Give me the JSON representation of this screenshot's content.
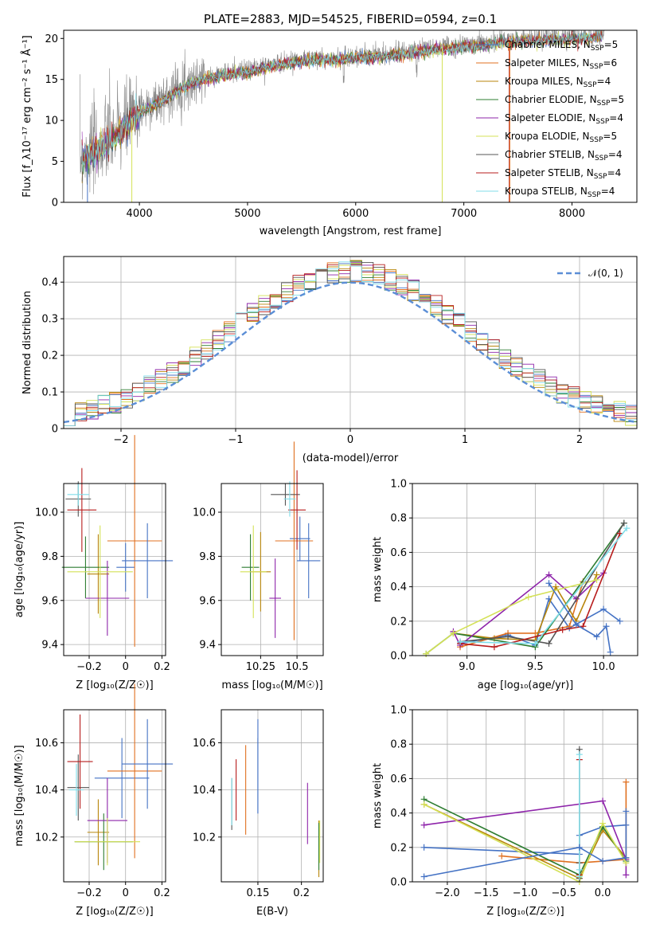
{
  "title": "PLATE=2883, MJD=54525, FIBERID=0594, z=0.1",
  "colors": [
    "#4472c4",
    "#e07020",
    "#b8860b",
    "#2e7d32",
    "#8e24aa",
    "#d4e157",
    "#555555",
    "#b71c1c",
    "#80deea"
  ],
  "models": [
    {
      "name": "Chabrier MILES",
      "nssp": "5"
    },
    {
      "name": "Salpeter MILES",
      "nssp": "6"
    },
    {
      "name": "Kroupa MILES",
      "nssp": "4"
    },
    {
      "name": "Chabrier ELODIE",
      "nssp": "5"
    },
    {
      "name": "Salpeter ELODIE",
      "nssp": "4"
    },
    {
      "name": "Kroupa ELODIE",
      "nssp": "5"
    },
    {
      "name": "Chabrier STELIB",
      "nssp": "4"
    },
    {
      "name": "Salpeter STELIB",
      "nssp": "4"
    },
    {
      "name": "Kroupa STELIB",
      "nssp": "4"
    }
  ],
  "chart_data": [
    {
      "id": "spectrum",
      "type": "line",
      "xlabel": "wavelength [Angstrom, rest frame]",
      "ylabel": "Flux [f_λ10⁻¹⁷ erg cm⁻² s⁻¹ Å⁻¹]",
      "xlim": [
        3300,
        8600
      ],
      "ylim": [
        0,
        21
      ],
      "xticks": [
        4000,
        5000,
        6000,
        7000,
        8000
      ],
      "yticks": [
        0,
        5,
        10,
        15,
        20
      ],
      "data_color": "#888888",
      "continuum": [
        [
          3450,
          5.5
        ],
        [
          3600,
          6.5
        ],
        [
          3800,
          8.5
        ],
        [
          4000,
          11.2
        ],
        [
          4200,
          12.5
        ],
        [
          4400,
          14.3
        ],
        [
          4600,
          15.3
        ],
        [
          4800,
          15.8
        ],
        [
          5000,
          16.2
        ],
        [
          5200,
          16.8
        ],
        [
          5400,
          17.3
        ],
        [
          5600,
          17.6
        ],
        [
          5800,
          17.6
        ],
        [
          6000,
          17.9
        ],
        [
          6200,
          18.0
        ],
        [
          6400,
          18.3
        ],
        [
          6600,
          18.6
        ],
        [
          6800,
          19.0
        ],
        [
          7000,
          19.2
        ],
        [
          7200,
          19.5
        ],
        [
          7400,
          19.8
        ],
        [
          7600,
          20.0
        ],
        [
          7800,
          20.1
        ],
        [
          8000,
          20.2
        ],
        [
          8300,
          20.5
        ]
      ],
      "legend_position": "upper-right"
    },
    {
      "id": "residuals",
      "type": "histogram",
      "xlabel": "(data-model)/error",
      "ylabel": "Normed distribution",
      "xlim": [
        -2.5,
        2.5
      ],
      "ylim": [
        0,
        0.47
      ],
      "xticks": [
        -2,
        -1,
        0,
        1,
        2
      ],
      "yticks": [
        0.0,
        0.1,
        0.2,
        0.3,
        0.4
      ],
      "grid": true,
      "reference": {
        "label": "𝒩(0, 1)",
        "color": "#5b8ed6",
        "mean": 0,
        "sigma": 1
      },
      "legend_position": "upper-right"
    },
    {
      "id": "age-vs-Z",
      "type": "errorbar",
      "xlabel": "Z [log₁₀(Z/Z☉)]",
      "ylabel": "age  [log₁₀(age/yr)]",
      "xlim": [
        -0.34,
        0.22
      ],
      "ylim": [
        9.35,
        10.13
      ],
      "xticks": [
        -0.2,
        0.0,
        0.2
      ],
      "yticks": [
        9.4,
        9.6,
        9.8,
        10.0
      ],
      "grid": true,
      "points": [
        {
          "x": -0.0,
          "y": 9.75,
          "xerr": 0.05,
          "yerr": 0.11
        },
        {
          "x": 0.05,
          "y": 9.87,
          "xerr": 0.15,
          "yerr": 0.48
        },
        {
          "x": -0.15,
          "y": 9.72,
          "xerr": 0.06,
          "yerr": 0.18
        },
        {
          "x": -0.22,
          "y": 9.75,
          "xerr": 0.13,
          "yerr": 0.14
        },
        {
          "x": -0.1,
          "y": 9.61,
          "xerr": 0.12,
          "yerr": 0.17
        },
        {
          "x": -0.14,
          "y": 9.73,
          "xerr": 0.18,
          "yerr": 0.21
        },
        {
          "x": -0.26,
          "y": 10.06,
          "xerr": 0.07,
          "yerr": 0.08
        },
        {
          "x": -0.24,
          "y": 10.01,
          "xerr": 0.08,
          "yerr": 0.19
        },
        {
          "x": -0.26,
          "y": 10.08,
          "xerr": 0.06,
          "yerr": 0.05
        },
        {
          "x": 0.12,
          "y": 9.78,
          "xerr": 0.14,
          "yerr": 0.17
        }
      ]
    },
    {
      "id": "age-vs-mass",
      "type": "errorbar",
      "xlabel": "mass [log₁₀(M/M☉)]",
      "ylabel": "",
      "xlim": [
        9.98,
        10.68
      ],
      "ylim": [
        9.35,
        10.13
      ],
      "xticks": [
        10.25,
        10.5
      ],
      "yticks": [
        9.4,
        9.6,
        9.8,
        10.0
      ],
      "grid": true,
      "points": [
        {
          "x": 10.52,
          "y": 9.88,
          "xerr": 0.07,
          "yerr": 0.1
        },
        {
          "x": 10.48,
          "y": 9.87,
          "xerr": 0.13,
          "yerr": 0.45
        },
        {
          "x": 10.25,
          "y": 9.73,
          "xerr": 0.07,
          "yerr": 0.18
        },
        {
          "x": 10.18,
          "y": 9.75,
          "xerr": 0.06,
          "yerr": 0.15
        },
        {
          "x": 10.35,
          "y": 9.61,
          "xerr": 0.04,
          "yerr": 0.18
        },
        {
          "x": 10.2,
          "y": 9.73,
          "xerr": 0.09,
          "yerr": 0.21
        },
        {
          "x": 10.42,
          "y": 10.08,
          "xerr": 0.1,
          "yerr": 0.05
        },
        {
          "x": 10.5,
          "y": 10.01,
          "xerr": 0.06,
          "yerr": 0.18
        },
        {
          "x": 10.45,
          "y": 10.06,
          "xerr": 0.04,
          "yerr": 0.08
        },
        {
          "x": 10.58,
          "y": 9.78,
          "xerr": 0.08,
          "yerr": 0.17
        }
      ]
    },
    {
      "id": "weight-vs-age",
      "type": "line",
      "xlabel": "age  [log₁₀(age/yr)]",
      "ylabel": "mass weight",
      "xlim": [
        8.6,
        10.25
      ],
      "ylim": [
        0,
        1.0
      ],
      "xticks": [
        9.0,
        9.5,
        10.0
      ],
      "yticks": [
        0.0,
        0.2,
        0.4,
        0.6,
        0.8,
        1.0
      ],
      "grid": true,
      "series": [
        {
          "x": [
            8.95,
            9.3,
            9.5,
            9.6,
            9.75,
            10.0,
            10.12
          ],
          "y": [
            0.07,
            0.12,
            0.06,
            0.33,
            0.16,
            0.27,
            0.2
          ]
        },
        {
          "x": [
            8.95,
            9.3,
            9.5,
            9.75,
            9.85
          ],
          "y": [
            0.05,
            0.13,
            0.13,
            0.17,
            0.43
          ]
        },
        {
          "x": [
            8.9,
            9.2,
            9.5,
            9.65,
            9.8,
            9.95
          ],
          "y": [
            0.13,
            0.1,
            0.09,
            0.4,
            0.2,
            0.47
          ]
        },
        {
          "x": [
            8.7,
            8.9,
            9.5,
            10.15
          ],
          "y": [
            0.01,
            0.13,
            0.05,
            0.77
          ]
        },
        {
          "x": [
            8.9,
            8.95,
            9.6,
            9.8,
            10.0
          ],
          "y": [
            0.14,
            0.06,
            0.47,
            0.33,
            0.48
          ]
        },
        {
          "x": [
            8.7,
            8.9,
            9.45,
            9.95
          ],
          "y": [
            0.01,
            0.13,
            0.34,
            0.44
          ]
        },
        {
          "x": [
            8.95,
            9.3,
            9.6,
            10.15
          ],
          "y": [
            0.08,
            0.11,
            0.07,
            0.77
          ]
        },
        {
          "x": [
            8.95,
            9.2,
            9.7,
            9.85,
            10.12
          ],
          "y": [
            0.07,
            0.05,
            0.15,
            0.17,
            0.71
          ]
        },
        {
          "x": [
            8.95,
            9.5,
            10.17
          ],
          "y": [
            0.08,
            0.07,
            0.74
          ]
        },
        {
          "x": [
            9.6,
            9.8,
            9.95,
            10.02,
            10.05
          ],
          "y": [
            0.42,
            0.18,
            0.11,
            0.17,
            0.02
          ]
        }
      ]
    },
    {
      "id": "mass-vs-Z",
      "type": "errorbar",
      "xlabel": "Z [log₁₀(Z/Z☉)]",
      "ylabel": "mass [log₁₀(M/M☉)]",
      "xlim": [
        -0.34,
        0.22
      ],
      "ylim": [
        10.01,
        10.74
      ],
      "xticks": [
        -0.2,
        0.0,
        0.2
      ],
      "yticks": [
        10.2,
        10.4,
        10.6
      ],
      "grid": true,
      "points": [
        {
          "x": -0.02,
          "y": 10.45,
          "xerr": 0.15,
          "yerr": 0.17
        },
        {
          "x": 0.05,
          "y": 10.48,
          "xerr": 0.15,
          "yerr": 0.37
        },
        {
          "x": -0.15,
          "y": 10.22,
          "xerr": 0.06,
          "yerr": 0.14
        },
        {
          "x": -0.12,
          "y": 10.18,
          "xerr": 0.16,
          "yerr": 0.12
        },
        {
          "x": -0.1,
          "y": 10.27,
          "xerr": 0.11,
          "yerr": 0.18
        },
        {
          "x": -0.1,
          "y": 10.18,
          "xerr": 0.18,
          "yerr": 0.1
        },
        {
          "x": -0.26,
          "y": 10.41,
          "xerr": 0.06,
          "yerr": 0.14
        },
        {
          "x": -0.25,
          "y": 10.52,
          "xerr": 0.07,
          "yerr": 0.2
        },
        {
          "x": -0.27,
          "y": 10.4,
          "xerr": 0.04,
          "yerr": 0.11
        },
        {
          "x": 0.12,
          "y": 10.51,
          "xerr": 0.14,
          "yerr": 0.19
        }
      ]
    },
    {
      "id": "mass-vs-EBV",
      "type": "errorbar",
      "xlabel": "E(B-V)",
      "ylabel": "",
      "xlim": [
        0.108,
        0.225
      ],
      "ylim": [
        10.01,
        10.74
      ],
      "xticks": [
        0.15,
        0.2
      ],
      "yticks": [
        10.2,
        10.4,
        10.6
      ],
      "grid": true,
      "points": [
        {
          "x": 0.15,
          "y": 10.46,
          "xerr": 0,
          "yerr": 0.16
        },
        {
          "x": 0.136,
          "y": 10.4,
          "xerr": 0,
          "yerr": 0.19
        },
        {
          "x": 0.22,
          "y": 10.15,
          "xerr": 0,
          "yerr": 0.12
        },
        {
          "x": 0.22,
          "y": 10.16,
          "xerr": 0,
          "yerr": 0.1
        },
        {
          "x": 0.207,
          "y": 10.3,
          "xerr": 0,
          "yerr": 0.13
        },
        {
          "x": 0.221,
          "y": 10.18,
          "xerr": 0,
          "yerr": 0.09
        },
        {
          "x": 0.12,
          "y": 10.34,
          "xerr": 0,
          "yerr": 0.11
        },
        {
          "x": 0.125,
          "y": 10.4,
          "xerr": 0,
          "yerr": 0.13
        },
        {
          "x": 0.12,
          "y": 10.35,
          "xerr": 0,
          "yerr": 0.1
        },
        {
          "x": 0.15,
          "y": 10.5,
          "xerr": 0,
          "yerr": 0.2
        }
      ]
    },
    {
      "id": "weight-vs-Z",
      "type": "line",
      "xlabel": "Z [log₁₀(Z/Z☉)]",
      "ylabel": "mass weight",
      "xlim": [
        -2.45,
        0.45
      ],
      "ylim": [
        0,
        1.0
      ],
      "xticks": [
        -2.0,
        -1.5,
        -1.0,
        -0.5,
        0.0
      ],
      "yticks": [
        0.0,
        0.2,
        0.4,
        0.6,
        0.8,
        1.0
      ],
      "grid": true,
      "series": [
        {
          "x": [
            -2.3,
            -0.3,
            -0.3,
            0.0,
            0.3
          ],
          "y": [
            0.2,
            0.16,
            0.27,
            0.32,
            0.33
          ]
        },
        {
          "x": [
            -1.3,
            -0.3,
            0.0,
            0.3,
            0.3
          ],
          "y": [
            0.15,
            0.11,
            0.12,
            0.13,
            0.58
          ]
        },
        {
          "x": [
            -2.3,
            -0.3,
            0.0,
            0.3
          ],
          "y": [
            0.45,
            0.02,
            0.3,
            0.14
          ]
        },
        {
          "x": [
            -2.3,
            -0.3,
            0.0,
            0.3
          ],
          "y": [
            0.48,
            0.04,
            0.32,
            0.12
          ]
        },
        {
          "x": [
            -2.3,
            0.0,
            0.3,
            0.3
          ],
          "y": [
            0.33,
            0.47,
            0.13,
            0.04
          ]
        },
        {
          "x": [
            -2.3,
            -0.3,
            0.0,
            0.3
          ],
          "y": [
            0.45,
            0.0,
            0.34,
            0.11
          ]
        },
        {
          "x": [
            -0.3,
            -0.3,
            -0.3
          ],
          "y": [
            0.77,
            0.11,
            0.02
          ]
        },
        {
          "x": [
            -0.3,
            -0.3
          ],
          "y": [
            0.71,
            0.04
          ]
        },
        {
          "x": [
            -0.3,
            -0.3,
            -0.3
          ],
          "y": [
            0.74,
            0.07,
            0.03
          ]
        },
        {
          "x": [
            -2.3,
            -0.3,
            0.0,
            0.3,
            0.3
          ],
          "y": [
            0.03,
            0.2,
            0.12,
            0.14,
            0.41
          ]
        }
      ]
    }
  ]
}
